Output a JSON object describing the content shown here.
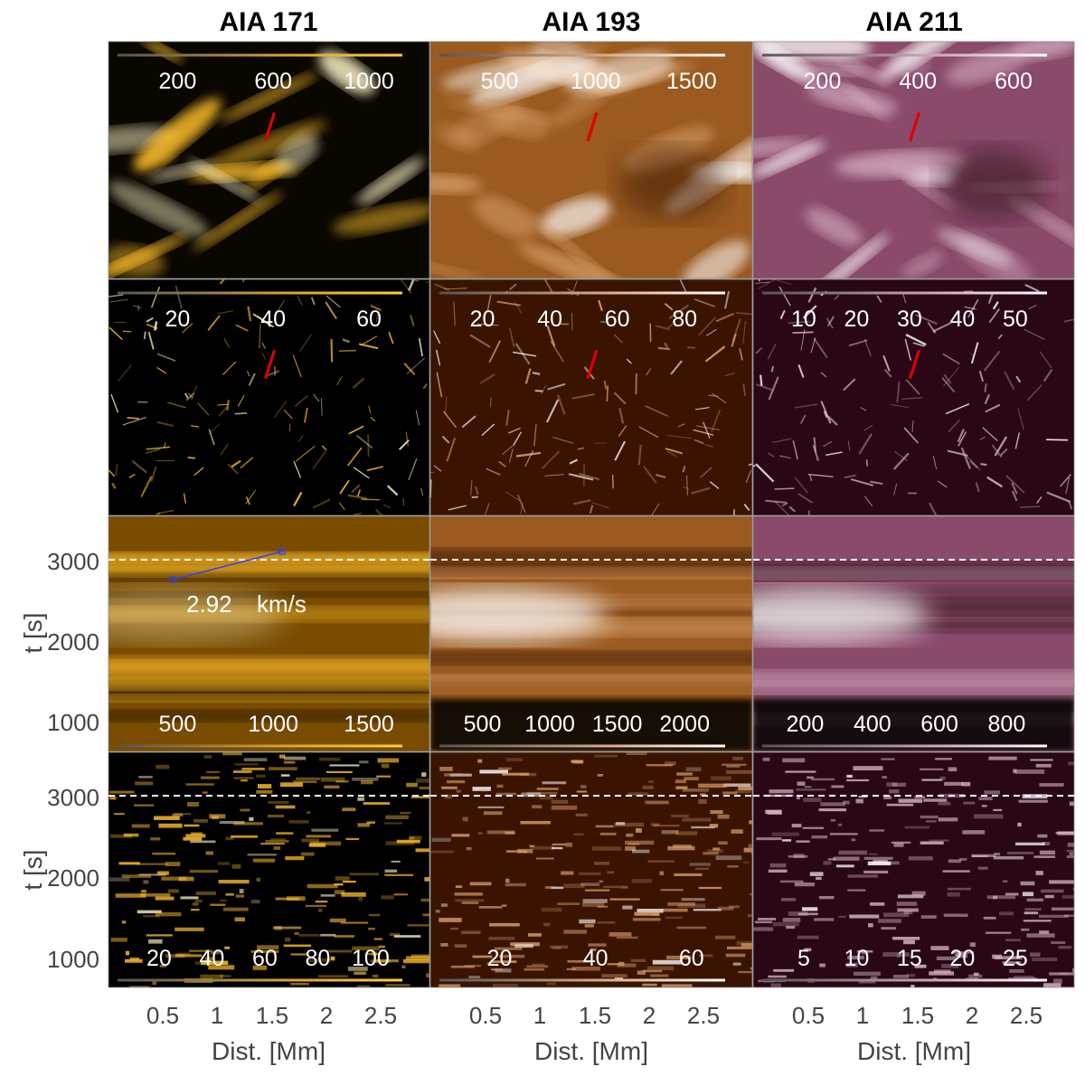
{
  "figure": {
    "columns": [
      {
        "title": "AIA 171",
        "theme": "gold"
      },
      {
        "title": "AIA 193",
        "theme": "copper"
      },
      {
        "title": "AIA 211",
        "theme": "mauve"
      }
    ],
    "themes": {
      "gold": {
        "dark": "#000000",
        "mid": "#b87a00",
        "bright": "#ffc02a",
        "peak": "#fff6c8"
      },
      "copper": {
        "dark": "#3a1400",
        "mid": "#9a5a20",
        "bright": "#d9a06a",
        "peak": "#ffffff"
      },
      "mauve": {
        "dark": "#2a0716",
        "mid": "#8a4a6a",
        "bright": "#d9b4c8",
        "peak": "#ffffff"
      }
    },
    "colorbar_ticks": [
      [
        [
          "200",
          "600",
          "1000"
        ],
        [
          "500",
          "1000",
          "1500"
        ],
        [
          "200",
          "400",
          "600"
        ]
      ],
      [
        [
          "20",
          "40",
          "60"
        ],
        [
          "20",
          "40",
          "60",
          "80"
        ],
        [
          "10",
          "20",
          "30",
          "40",
          "50"
        ]
      ],
      [
        [
          "500",
          "1000",
          "1500"
        ],
        [
          "500",
          "1000",
          "1500",
          "2000"
        ],
        [
          "200",
          "400",
          "600",
          "800"
        ]
      ],
      [
        [
          "20",
          "40",
          "60",
          "80",
          "100"
        ],
        [
          "20",
          "40",
          "60"
        ],
        [
          "5",
          "10",
          "15",
          "20",
          "25"
        ]
      ]
    ],
    "y_axis": {
      "label": "t [s]",
      "ticks": [
        "1000",
        "2000",
        "3000"
      ],
      "dashed_line_at": 3000
    },
    "x_axis": {
      "label": "Dist. [Mm]",
      "ticks": [
        "0.5",
        "1",
        "1.5",
        "2",
        "2.5"
      ]
    },
    "annotation": {
      "velocity": "2.92",
      "unit": "km/s"
    },
    "slit_color": "#e00000",
    "fit_line_color": "#3040ff"
  }
}
